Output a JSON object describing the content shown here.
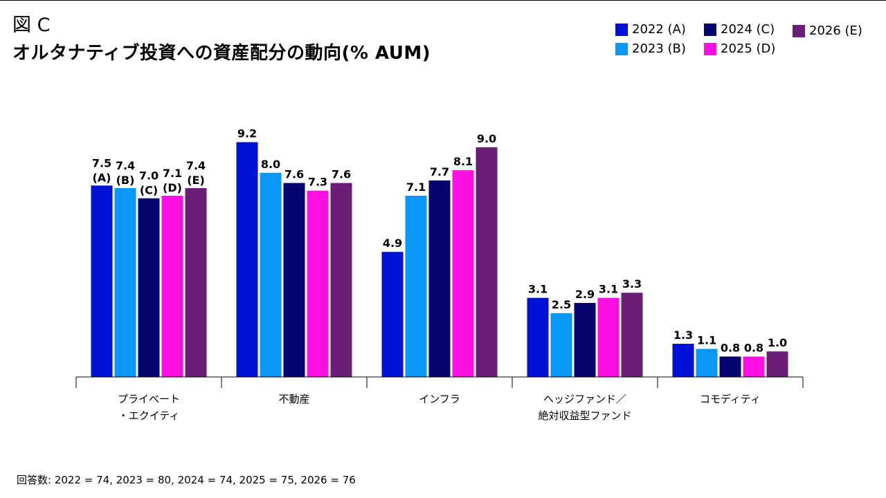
{
  "figure_label": "図 C",
  "title": "オルタナティブ投資への資産配分の動向(% AUM)",
  "footnote": "回答数: 2022 = 74, 2023 = 80, 2024 = 74, 2025 = 75, 2026 = 76",
  "colors": {
    "2022": "#0011d6",
    "2023": "#0a97f7",
    "2024": "#050570",
    "2025": "#ff0fe1",
    "2026": "#6b1e76"
  },
  "chart_data": {
    "type": "bar",
    "title": "オルタナティブ投資への資産配分の動向(% AUM)",
    "xlabel": "",
    "ylabel": "",
    "ylim": [
      0,
      10
    ],
    "grid": false,
    "legend_position": "top-right",
    "categories": [
      [
        "プライベート",
        "・エクイティ"
      ],
      [
        "不動産"
      ],
      [
        "インフラ"
      ],
      [
        "ヘッジファンド／",
        "絶対収益型ファンド"
      ],
      [
        "コモディティ"
      ]
    ],
    "series": [
      {
        "name": "2022 (A)",
        "tag": "(A)",
        "color": "#0011d6",
        "values": [
          7.5,
          9.2,
          4.9,
          3.1,
          1.3
        ]
      },
      {
        "name": "2023 (B)",
        "tag": "(B)",
        "color": "#0a97f7",
        "values": [
          7.4,
          8.0,
          7.1,
          2.5,
          1.1
        ]
      },
      {
        "name": "2024 (C)",
        "tag": "(C)",
        "color": "#050570",
        "values": [
          7.0,
          7.6,
          7.7,
          2.9,
          0.8
        ]
      },
      {
        "name": "2025 (D)",
        "tag": "(D)",
        "color": "#ff0fe1",
        "values": [
          7.1,
          7.3,
          8.1,
          3.1,
          0.8
        ]
      },
      {
        "name": "2026 (E)",
        "tag": "(E)",
        "color": "#6b1e76",
        "values": [
          7.4,
          7.6,
          9.0,
          3.3,
          1.0
        ]
      }
    ],
    "value_labels": [
      [
        "7.5",
        "7.4",
        "7.0",
        "7.1",
        "7.4"
      ],
      [
        "9.2",
        "8.0",
        "7.6",
        "7.3",
        "7.6"
      ],
      [
        "4.9",
        "7.1",
        "7.7",
        "8.1",
        "9.0"
      ],
      [
        "3.1",
        "2.5",
        "2.9",
        "3.1",
        "3.3"
      ],
      [
        "1.3",
        "1.1",
        "0.8",
        "0.8",
        "1.0"
      ]
    ],
    "tags_shown_on_group": 0
  }
}
